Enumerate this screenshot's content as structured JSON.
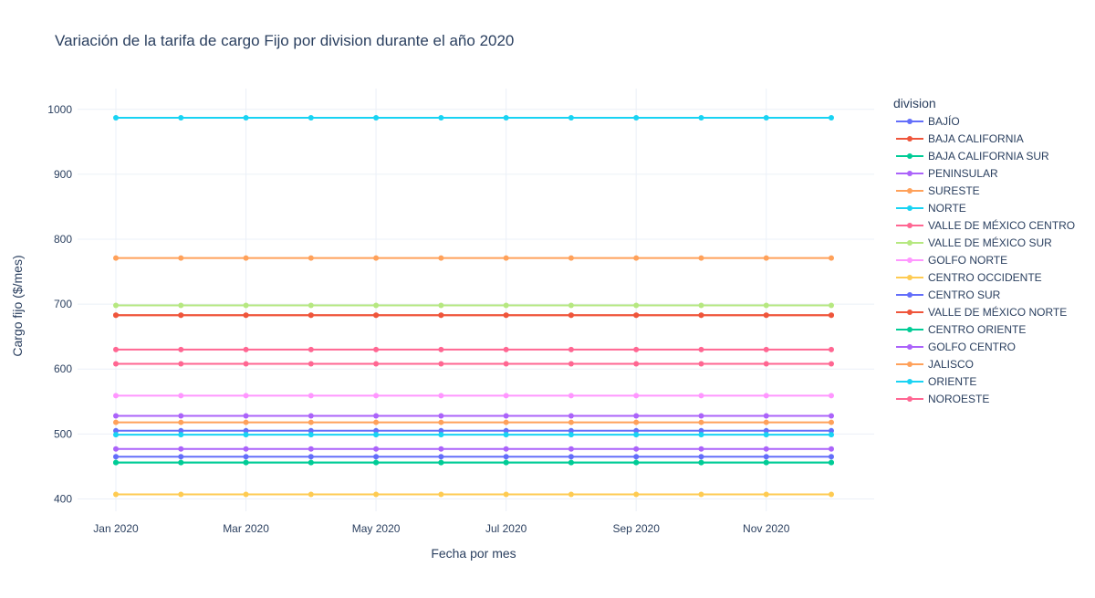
{
  "chart_data": {
    "type": "line",
    "title": "Variación de la tarifa de cargo Fijo por division durante el año 2020",
    "xlabel": "Fecha por mes",
    "ylabel": "Cargo fijo ($/mes)",
    "legend_title": "division",
    "legend_position": "right",
    "grid": true,
    "x": [
      "2020-01",
      "2020-02",
      "2020-03",
      "2020-04",
      "2020-05",
      "2020-06",
      "2020-07",
      "2020-08",
      "2020-09",
      "2020-10",
      "2020-11",
      "2020-12"
    ],
    "x_ticks": [
      {
        "x": "2020-01",
        "label": "Jan 2020"
      },
      {
        "x": "2020-03",
        "label": "Mar 2020"
      },
      {
        "x": "2020-05",
        "label": "May 2020"
      },
      {
        "x": "2020-07",
        "label": "Jul 2020"
      },
      {
        "x": "2020-09",
        "label": "Sep 2020"
      },
      {
        "x": "2020-11",
        "label": "Nov 2020"
      }
    ],
    "ylim": [
      381,
      1032
    ],
    "y_ticks": [
      400,
      500,
      600,
      700,
      800,
      900,
      1000
    ],
    "series": [
      {
        "name": "BAJÍO",
        "color": "#636efa",
        "values": [
          505,
          505,
          505,
          505,
          505,
          505,
          505,
          505,
          505,
          505,
          505,
          505
        ]
      },
      {
        "name": "BAJA CALIFORNIA",
        "color": "#EF553B",
        "values": [
          683,
          683,
          683,
          683,
          683,
          683,
          683,
          683,
          683,
          683,
          683,
          683
        ]
      },
      {
        "name": "BAJA CALIFORNIA SUR",
        "color": "#00cc96",
        "values": [
          456,
          456,
          456,
          456,
          456,
          456,
          456,
          456,
          456,
          456,
          456,
          456
        ]
      },
      {
        "name": "PENINSULAR",
        "color": "#ab63fa",
        "values": [
          477,
          477,
          477,
          477,
          477,
          477,
          477,
          477,
          477,
          477,
          477,
          477
        ]
      },
      {
        "name": "SURESTE",
        "color": "#FFA15A",
        "values": [
          518,
          518,
          518,
          518,
          518,
          518,
          518,
          518,
          518,
          518,
          518,
          518
        ]
      },
      {
        "name": "NORTE",
        "color": "#19d3f3",
        "values": [
          987,
          987,
          987,
          987,
          987,
          987,
          987,
          987,
          987,
          987,
          987,
          987
        ]
      },
      {
        "name": "VALLE DE MÉXICO CENTRO",
        "color": "#FF6692",
        "values": [
          630,
          630,
          630,
          630,
          630,
          630,
          630,
          630,
          630,
          630,
          630,
          630
        ]
      },
      {
        "name": "VALLE DE MÉXICO SUR",
        "color": "#B6E880",
        "values": [
          698,
          698,
          698,
          698,
          698,
          698,
          698,
          698,
          698,
          698,
          698,
          698
        ]
      },
      {
        "name": "GOLFO NORTE",
        "color": "#FF97FF",
        "values": [
          559,
          559,
          559,
          559,
          559,
          559,
          559,
          559,
          559,
          559,
          559,
          559
        ]
      },
      {
        "name": "CENTRO OCCIDENTE",
        "color": "#FECB52",
        "values": [
          407,
          407,
          407,
          407,
          407,
          407,
          407,
          407,
          407,
          407,
          407,
          407
        ]
      },
      {
        "name": "CENTRO SUR",
        "color": "#636efa",
        "values": [
          465,
          465,
          465,
          465,
          465,
          465,
          465,
          465,
          465,
          465,
          465,
          465
        ]
      },
      {
        "name": "VALLE DE MÉXICO NORTE",
        "color": "#EF553B",
        "values": [
          683,
          683,
          683,
          683,
          683,
          683,
          683,
          683,
          683,
          683,
          683,
          683
        ]
      },
      {
        "name": "CENTRO ORIENTE",
        "color": "#00cc96",
        "values": [
          456,
          456,
          456,
          456,
          456,
          456,
          456,
          456,
          456,
          456,
          456,
          456
        ]
      },
      {
        "name": "GOLFO CENTRO",
        "color": "#ab63fa",
        "values": [
          528,
          528,
          528,
          528,
          528,
          528,
          528,
          528,
          528,
          528,
          528,
          528
        ]
      },
      {
        "name": "JALISCO",
        "color": "#FFA15A",
        "values": [
          771,
          771,
          771,
          771,
          771,
          771,
          771,
          771,
          771,
          771,
          771,
          771
        ]
      },
      {
        "name": "ORIENTE",
        "color": "#19d3f3",
        "values": [
          499,
          499,
          499,
          499,
          499,
          499,
          499,
          499,
          499,
          499,
          499,
          499
        ]
      },
      {
        "name": "NOROESTE",
        "color": "#FF6692",
        "values": [
          608,
          608,
          608,
          608,
          608,
          608,
          608,
          608,
          608,
          608,
          608,
          608
        ]
      }
    ]
  }
}
